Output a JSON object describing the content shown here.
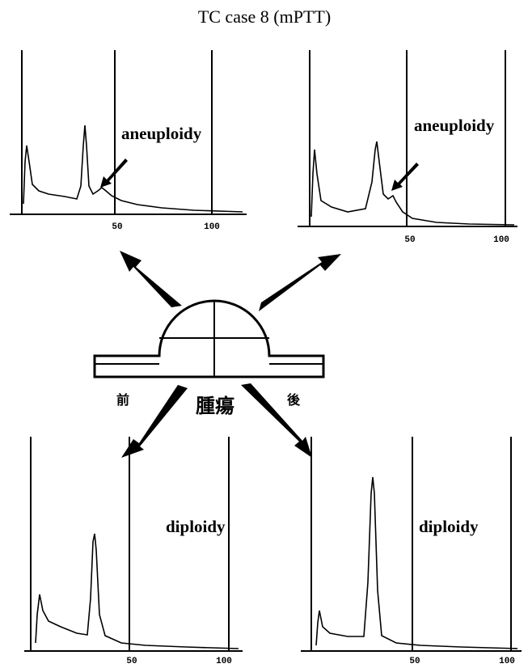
{
  "title": "TC case 8 (mPTT)",
  "panels": [
    {
      "label": "aneuploidy",
      "ticks": [
        50,
        100
      ]
    },
    {
      "label": "aneuploidy",
      "ticks": [
        50,
        100
      ]
    },
    {
      "label": "diploidy",
      "ticks": [
        50,
        100
      ]
    },
    {
      "label": "diploidy",
      "ticks": [
        50,
        100
      ]
    }
  ],
  "labels": {
    "front": "前",
    "tumor": "腫瘍",
    "back": "後"
  }
}
